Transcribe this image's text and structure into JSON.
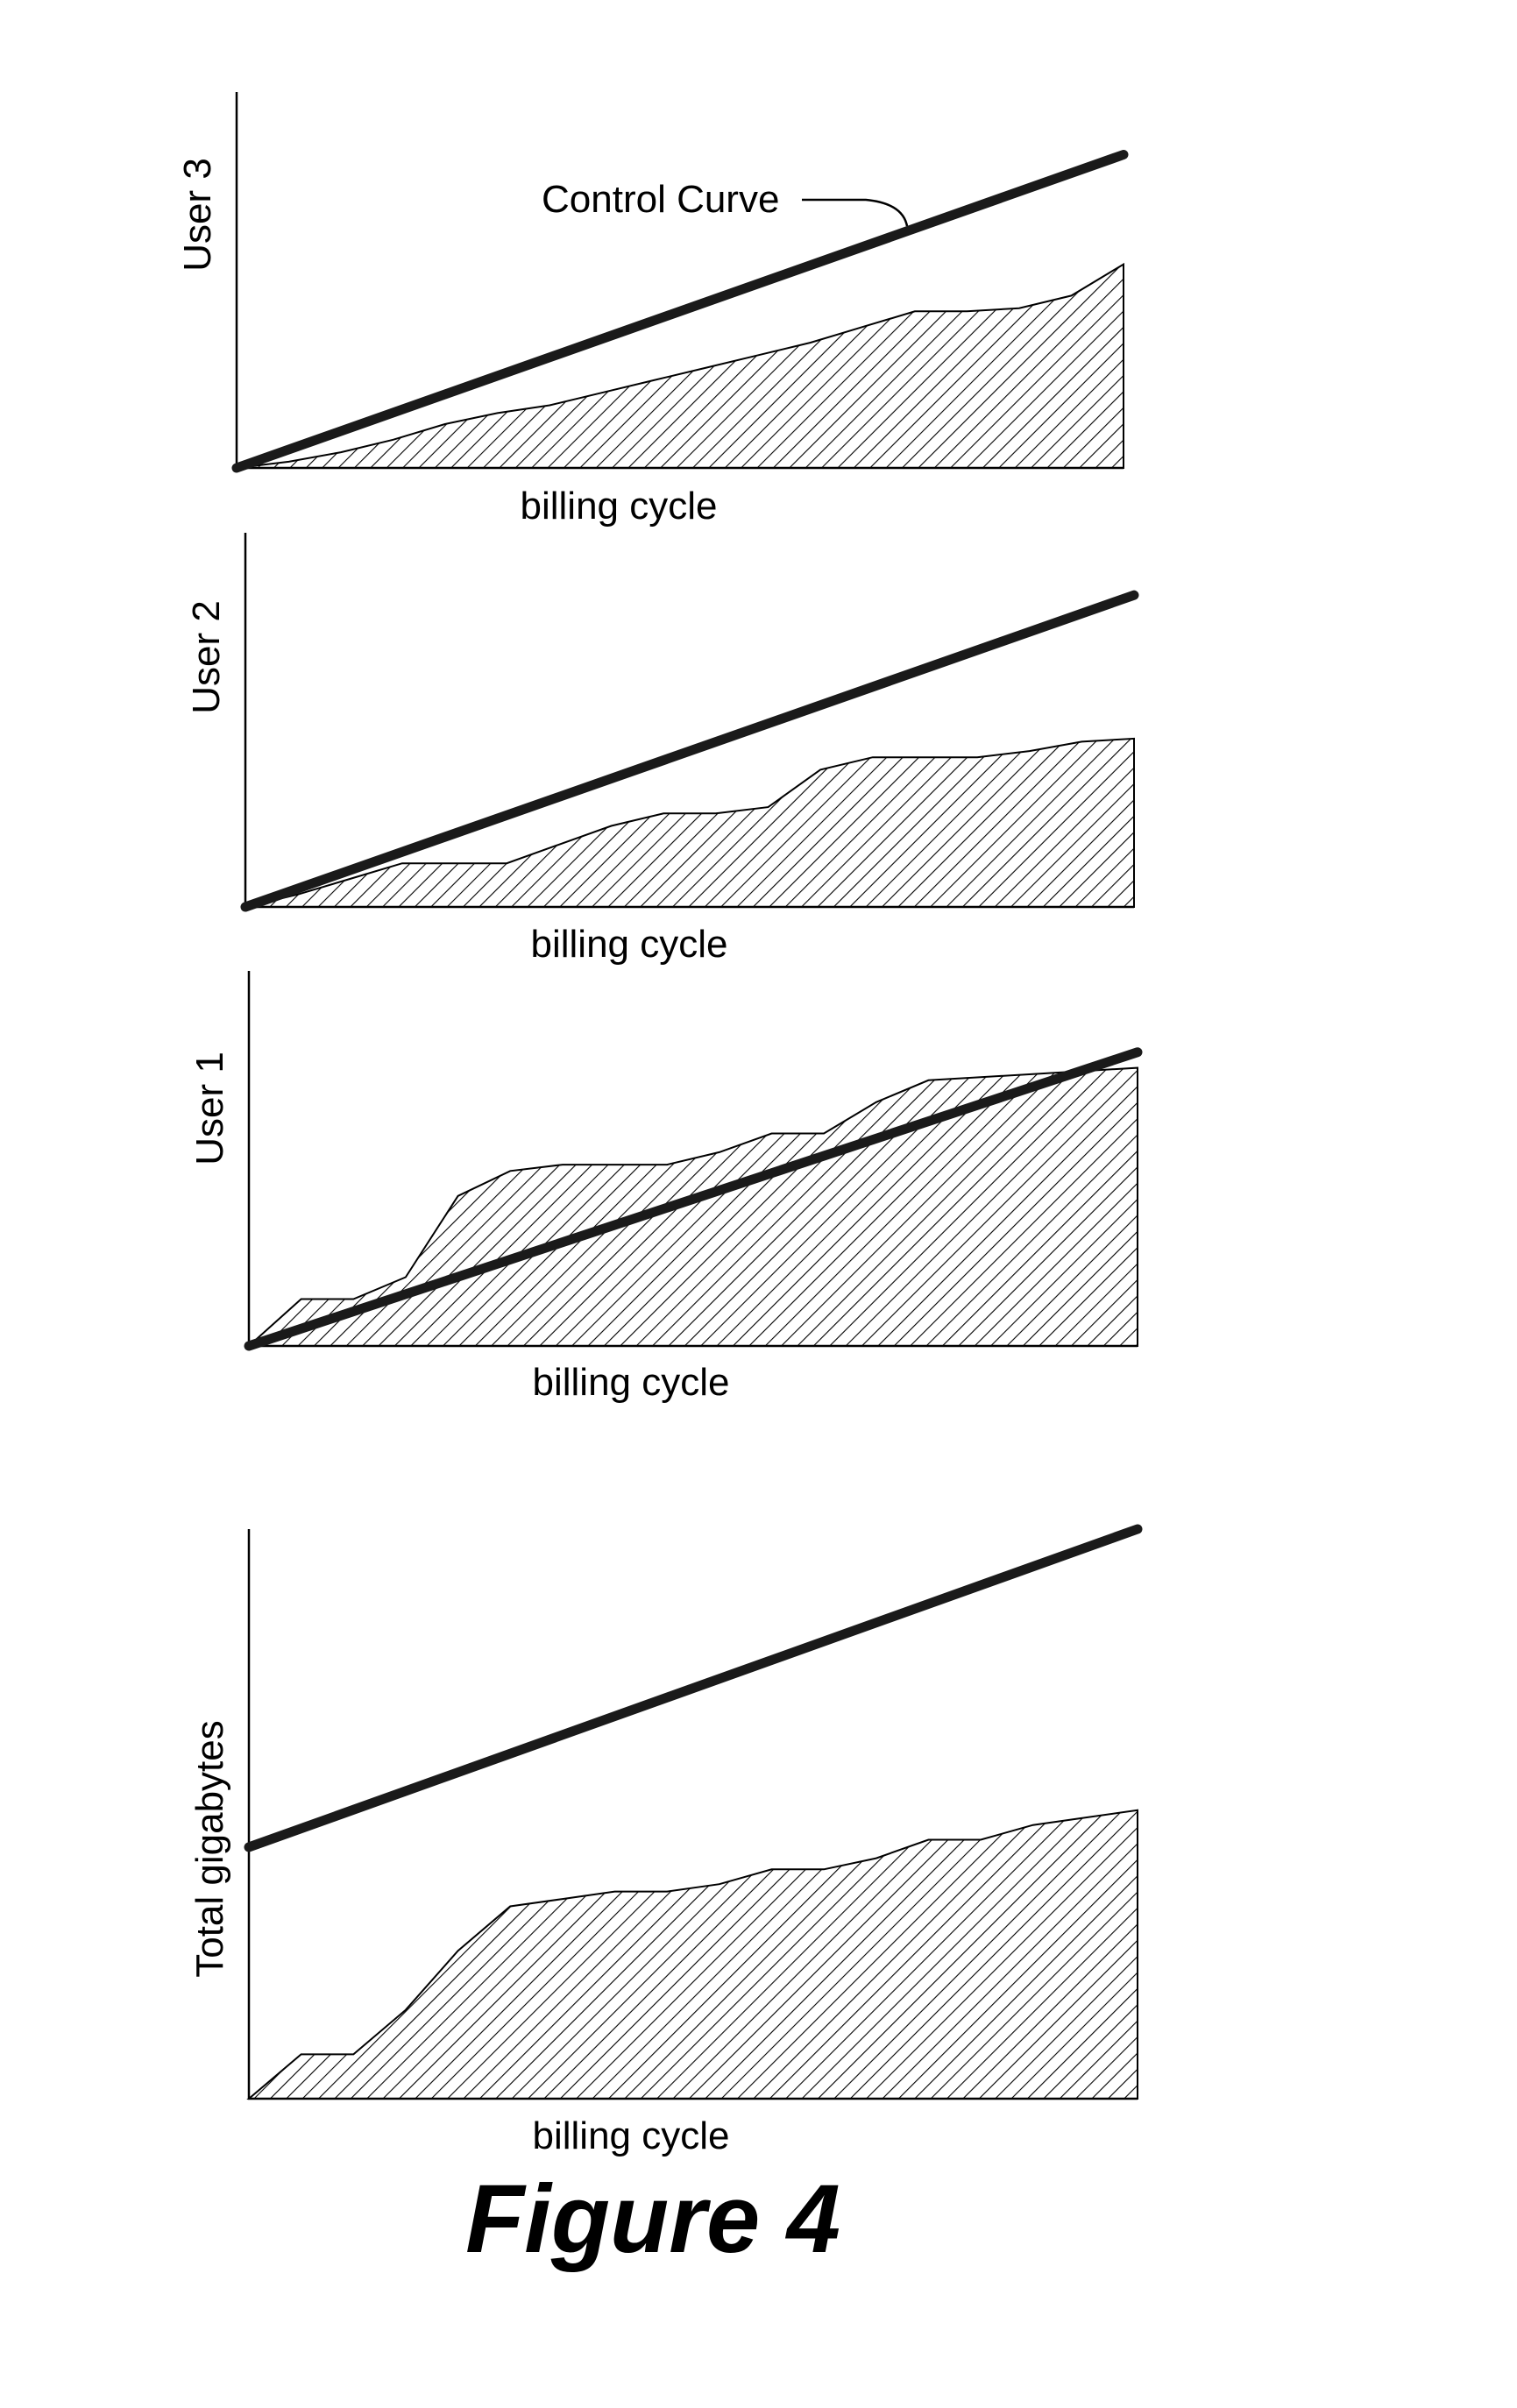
{
  "figure_caption": "Figure 4",
  "chart_data": [
    {
      "type": "area",
      "ylabel": "User 3",
      "xlabel": "billing cycle",
      "annotation": "Control Curve",
      "x": [
        0,
        1,
        2,
        3,
        4,
        5,
        6,
        7,
        8,
        9,
        10,
        11,
        12,
        13,
        14,
        15,
        16,
        17
      ],
      "series": [
        {
          "values": [
            0,
            0.2,
            0.5,
            0.9,
            1.4,
            1.75,
            2.0,
            2.4,
            2.8,
            3.2,
            3.6,
            4.0,
            4.5,
            5.0,
            5.0,
            5.1,
            5.5,
            6.5
          ]
        }
      ],
      "control_line": [
        0,
        10
      ],
      "ylim": [
        0,
        12
      ]
    },
    {
      "type": "area",
      "ylabel": "User 2",
      "xlabel": "billing cycle",
      "x": [
        0,
        1,
        2,
        3,
        4,
        5,
        6,
        7,
        8,
        9,
        10,
        11,
        12,
        13,
        14,
        15,
        16,
        17
      ],
      "series": [
        {
          "values": [
            0,
            0.4,
            0.9,
            1.4,
            1.4,
            1.4,
            2.0,
            2.6,
            3.0,
            3.0,
            3.2,
            4.4,
            4.8,
            4.8,
            4.8,
            5.0,
            5.3,
            5.4
          ]
        }
      ],
      "control_line": [
        0,
        10
      ],
      "ylim": [
        0,
        12
      ]
    },
    {
      "type": "area",
      "ylabel": "User 1",
      "xlabel": "billing cycle",
      "x": [
        0,
        1,
        2,
        3,
        4,
        5,
        6,
        7,
        8,
        9,
        10,
        11,
        12,
        13,
        14,
        15,
        16,
        17
      ],
      "series": [
        {
          "values": [
            0,
            1.5,
            1.5,
            2.2,
            4.8,
            5.6,
            5.8,
            5.8,
            5.8,
            6.2,
            6.8,
            6.8,
            7.8,
            8.5,
            8.6,
            8.7,
            8.8,
            8.9
          ]
        }
      ],
      "control_line": [
        0,
        9.4
      ],
      "ylim": [
        0,
        12
      ]
    },
    {
      "type": "area",
      "ylabel": "Total gigabytes",
      "xlabel": "billing cycle",
      "x": [
        0,
        1,
        2,
        3,
        4,
        5,
        6,
        7,
        8,
        9,
        10,
        11,
        12,
        13,
        14,
        15,
        16,
        17
      ],
      "series": [
        {
          "values": [
            0,
            1.2,
            1.2,
            2.4,
            4.0,
            5.2,
            5.4,
            5.6,
            5.6,
            5.8,
            6.2,
            6.2,
            6.5,
            7.0,
            7.0,
            7.4,
            7.6,
            7.8
          ]
        }
      ],
      "control_line": [
        6.8,
        15.4
      ],
      "ylim": [
        0,
        15.4
      ]
    }
  ]
}
